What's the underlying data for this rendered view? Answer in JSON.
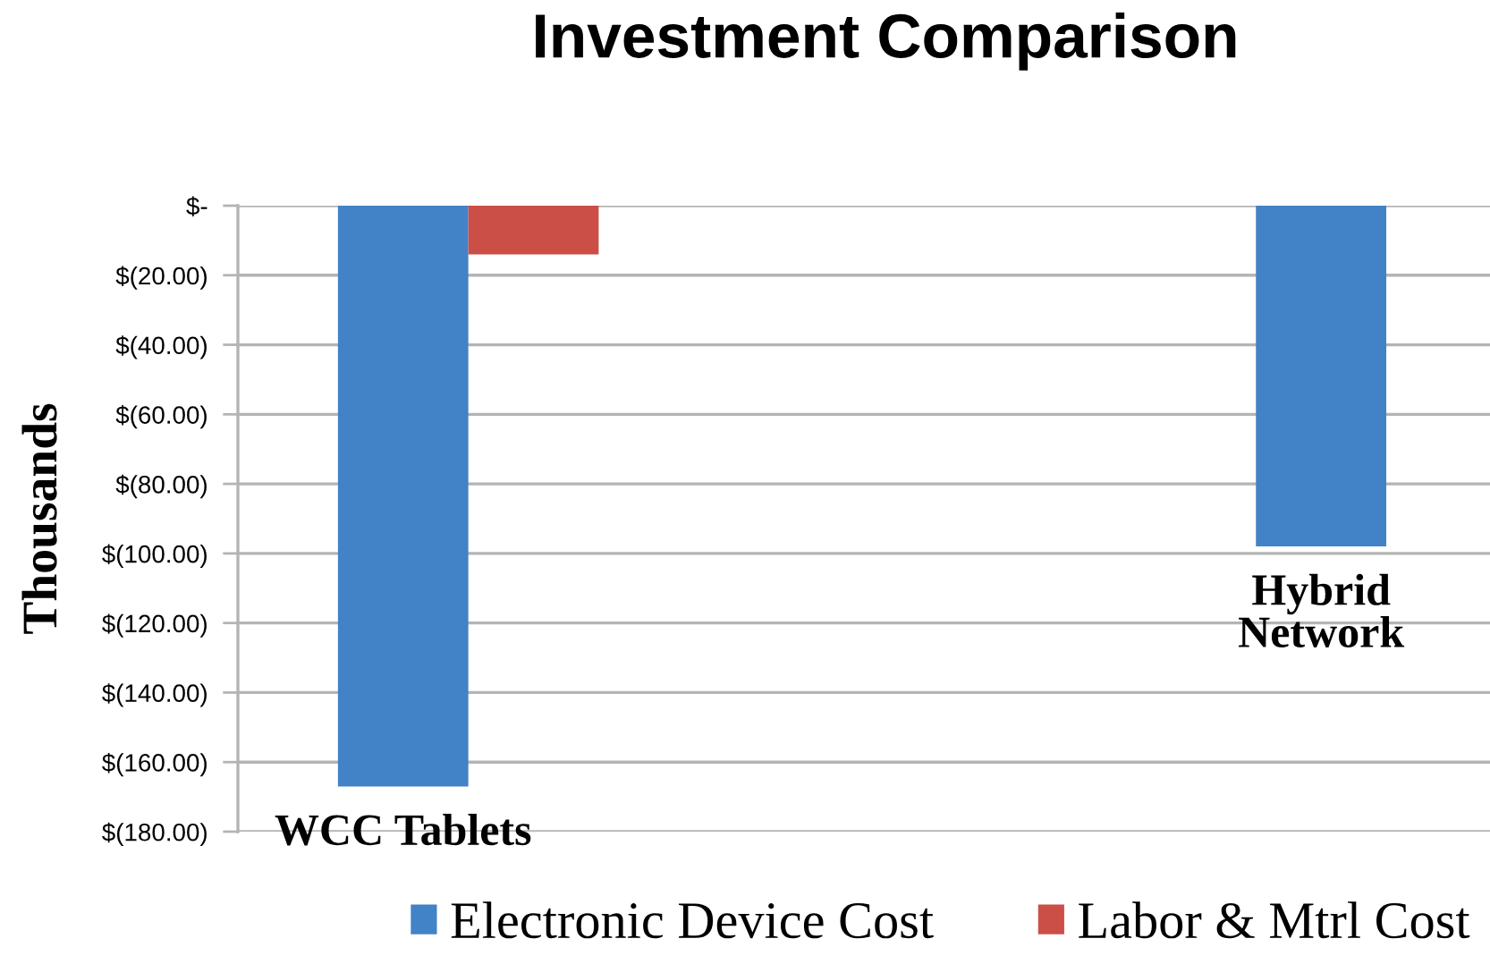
{
  "chart_data": {
    "type": "bar",
    "title": "Investment Comparison",
    "ylabel": "Thousands",
    "categories": [
      "WCC Tablets",
      "Hybrid Network"
    ],
    "series": [
      {
        "name": "Electronic Device Cost",
        "color": "#4282c6",
        "values": [
          -167,
          -98
        ]
      },
      {
        "name": "Labor & Mtrl Cost",
        "color": "#cc4f47",
        "values": [
          -14,
          null
        ]
      }
    ],
    "ylim": [
      -180,
      0
    ],
    "yticks": [
      {
        "value": 0,
        "label": "$-"
      },
      {
        "value": -20,
        "label": "$(20.00)"
      },
      {
        "value": -40,
        "label": "$(40.00)"
      },
      {
        "value": -60,
        "label": "$(60.00)"
      },
      {
        "value": -80,
        "label": "$(80.00)"
      },
      {
        "value": -100,
        "label": "$(100.00)"
      },
      {
        "value": -120,
        "label": "$(120.00)"
      },
      {
        "value": -140,
        "label": "$(140.00)"
      },
      {
        "value": -160,
        "label": "$(160.00)"
      },
      {
        "value": -180,
        "label": "$(180.00)"
      }
    ],
    "grid": "y",
    "legend": "bottom",
    "tick_labels": "y"
  }
}
